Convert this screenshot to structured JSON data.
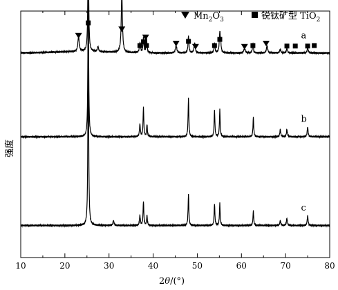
{
  "chart_data": {
    "type": "line",
    "xlabel_parts": [
      "2",
      "θ",
      "/(°)"
    ],
    "ylabel": "强度",
    "xlim": [
      10,
      80
    ],
    "xticks": [
      "10",
      "20",
      "30",
      "40",
      "50",
      "60",
      "70",
      "80"
    ],
    "grid": false,
    "legend_placement": "top",
    "legend": [
      {
        "marker": "triangle-down",
        "text": "Mn2O3",
        "parts": [
          "Mn",
          "2",
          "O",
          "3"
        ]
      },
      {
        "marker": "square",
        "text": "锐钛矿型 TiO2",
        "parts": [
          "锐钛矿型 TiO",
          "2"
        ]
      }
    ],
    "series": [
      {
        "name": "a",
        "baseline": 0.83,
        "peaks": [
          [
            23.1,
            0.06,
            0.18
          ],
          [
            25.3,
            0.4,
            0.12
          ],
          [
            27.5,
            0.02,
            0.15
          ],
          [
            32.9,
            0.24,
            0.16
          ],
          [
            37.0,
            0.04,
            0.15
          ],
          [
            37.8,
            0.06,
            0.12
          ],
          [
            38.5,
            0.06,
            0.12
          ],
          [
            45.2,
            0.03,
            0.18
          ],
          [
            48.0,
            0.07,
            0.12
          ],
          [
            49.4,
            0.04,
            0.16
          ],
          [
            53.9,
            0.04,
            0.12
          ],
          [
            55.1,
            0.08,
            0.14
          ],
          [
            55.3,
            0.03,
            0.12
          ],
          [
            60.7,
            0.02,
            0.18
          ],
          [
            62.6,
            0.04,
            0.12
          ],
          [
            65.8,
            0.03,
            0.16
          ],
          [
            68.8,
            0.015,
            0.14
          ],
          [
            70.3,
            0.02,
            0.14
          ],
          [
            75.0,
            0.02,
            0.14
          ]
        ]
      },
      {
        "name": "b",
        "baseline": 0.49,
        "peaks": [
          [
            25.3,
            0.62,
            0.1
          ],
          [
            37.0,
            0.05,
            0.12
          ],
          [
            37.8,
            0.12,
            0.1
          ],
          [
            38.6,
            0.05,
            0.1
          ],
          [
            48.0,
            0.16,
            0.1
          ],
          [
            53.9,
            0.11,
            0.1
          ],
          [
            55.1,
            0.11,
            0.1
          ],
          [
            62.7,
            0.08,
            0.1
          ],
          [
            68.8,
            0.03,
            0.12
          ],
          [
            70.3,
            0.03,
            0.12
          ],
          [
            75.0,
            0.04,
            0.12
          ]
        ]
      },
      {
        "name": "c",
        "baseline": 0.13,
        "peaks": [
          [
            25.3,
            0.78,
            0.1
          ],
          [
            31.0,
            0.02,
            0.14
          ],
          [
            37.0,
            0.04,
            0.12
          ],
          [
            37.8,
            0.1,
            0.1
          ],
          [
            38.6,
            0.04,
            0.1
          ],
          [
            48.0,
            0.13,
            0.1
          ],
          [
            53.9,
            0.09,
            0.1
          ],
          [
            55.1,
            0.09,
            0.1
          ],
          [
            62.7,
            0.06,
            0.1
          ],
          [
            68.8,
            0.02,
            0.12
          ],
          [
            70.3,
            0.03,
            0.12
          ],
          [
            75.0,
            0.04,
            0.12
          ]
        ]
      }
    ],
    "markers": [
      {
        "type": "triangle",
        "x": 23.1
      },
      {
        "type": "square",
        "x": 25.3
      },
      {
        "type": "triangle",
        "x": 32.9
      },
      {
        "type": "square",
        "x": 37.0
      },
      {
        "type": "square",
        "x": 37.8
      },
      {
        "type": "square",
        "x": 38.5
      },
      {
        "type": "triangle",
        "x": 38.3
      },
      {
        "type": "triangle",
        "x": 45.2
      },
      {
        "type": "square",
        "x": 48.0
      },
      {
        "type": "triangle",
        "x": 49.6
      },
      {
        "type": "square",
        "x": 53.9
      },
      {
        "type": "square",
        "x": 55.1
      },
      {
        "type": "triangle",
        "x": 60.7
      },
      {
        "type": "square",
        "x": 62.6
      },
      {
        "type": "triangle",
        "x": 65.6
      },
      {
        "type": "square",
        "x": 70.3
      },
      {
        "type": "square",
        "x": 72.2
      },
      {
        "type": "square",
        "x": 75.0
      },
      {
        "type": "square",
        "x": 76.5
      }
    ]
  }
}
